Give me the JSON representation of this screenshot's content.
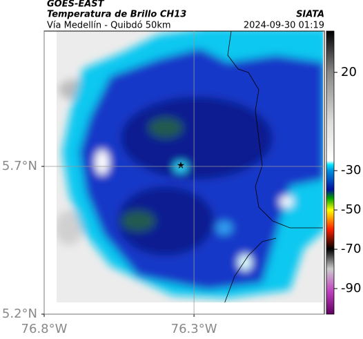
{
  "header": {
    "source": "GOES-EAST",
    "product": "Temperatura de Brillo CH13",
    "region": "Vía Medellín - Quibdó 50km",
    "org": "SIATA",
    "timestamp": "2024-09-30 01:19"
  },
  "map": {
    "xlim": [
      -76.8,
      -75.865
    ],
    "ylim": [
      5.2,
      6.158
    ],
    "xticks": [
      {
        "value": -76.8,
        "label": "76.8°W"
      },
      {
        "value": -76.3,
        "label": "76.3°W"
      }
    ],
    "yticks": [
      {
        "value": 5.2,
        "label": "5.2°N"
      },
      {
        "value": 5.7,
        "label": "5.7°N"
      }
    ],
    "grid": true
  },
  "colorbar": {
    "clim": [
      -103,
      41
    ],
    "ticks": [
      20,
      -30,
      -50,
      -70,
      -90
    ]
  }
}
